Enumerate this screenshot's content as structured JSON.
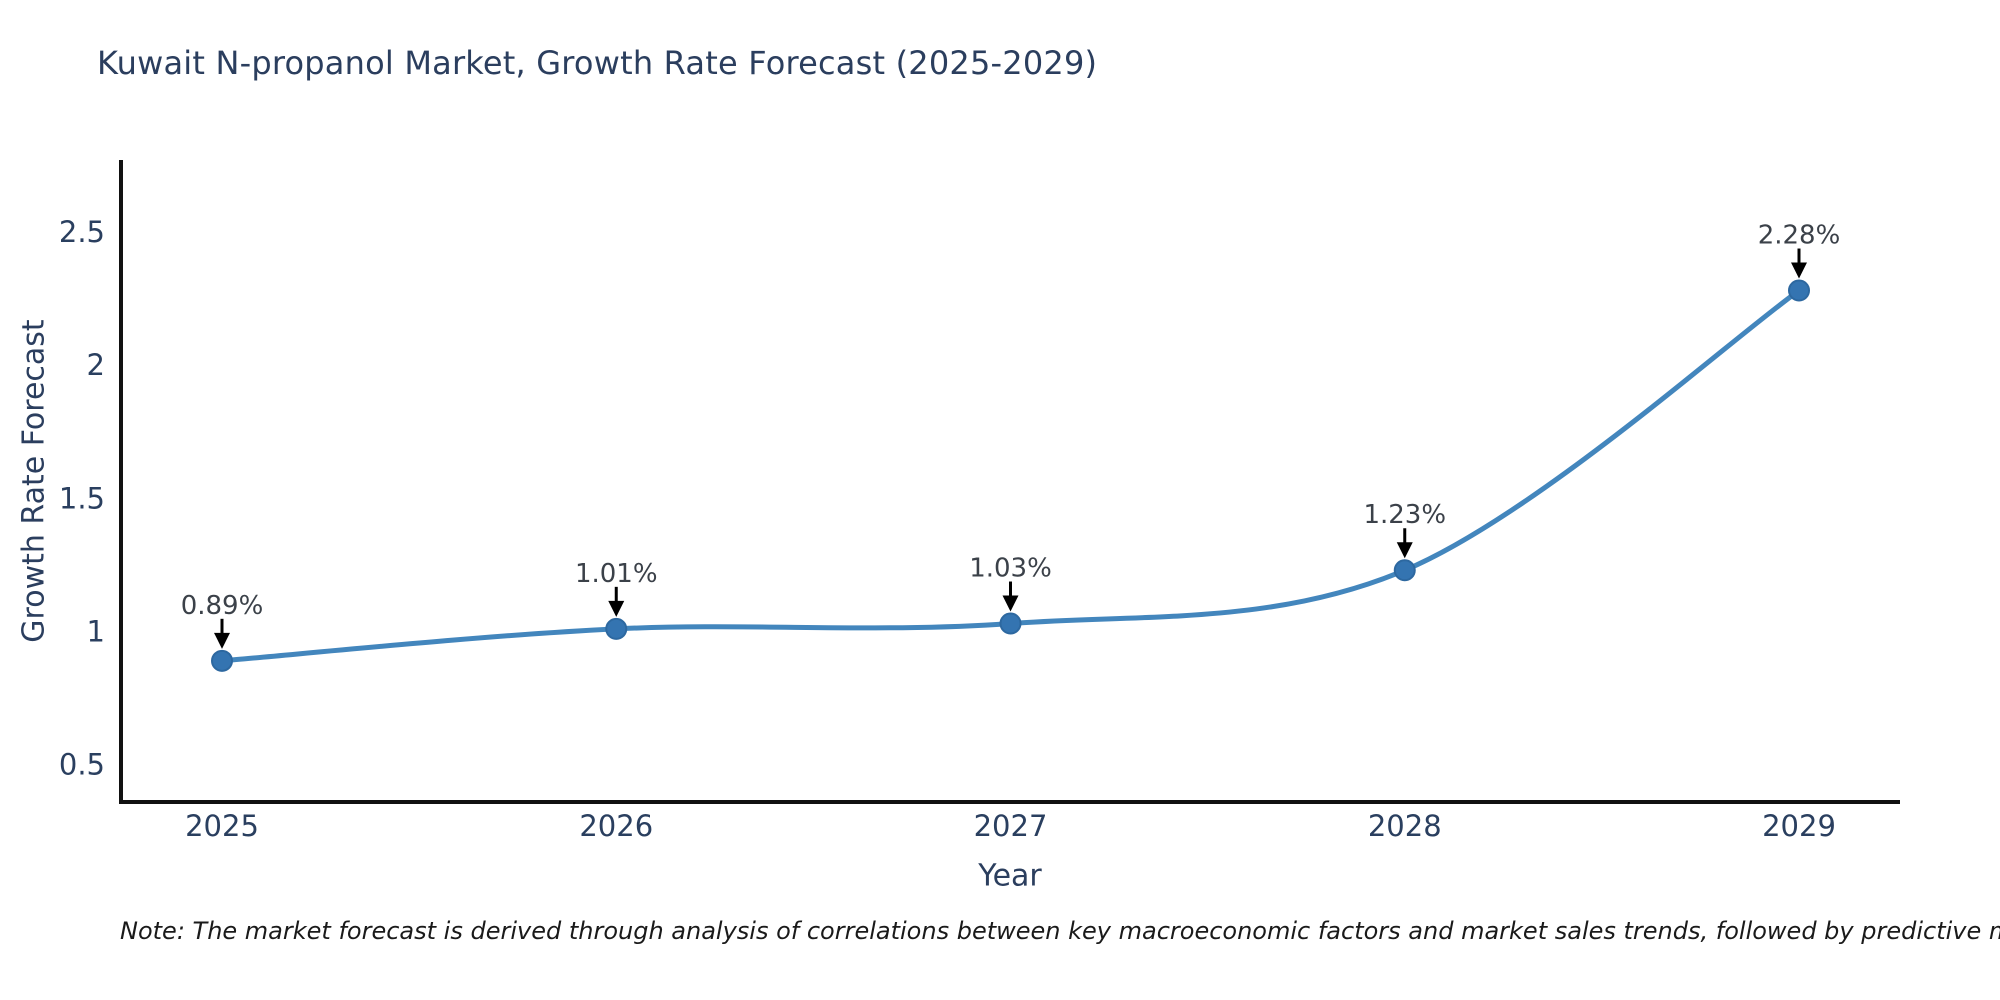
{
  "note": {
    "text": "Note: The market forecast is derived through analysis of correlations between key macroeconomic factors and market sales trends, followed by predictive modeling to project future sales"
  },
  "chart_data": {
    "type": "line",
    "title": "Kuwait N-propanol Market, Growth Rate Forecast (2025-2029)",
    "x": [
      "2025",
      "2026",
      "2027",
      "2028",
      "2029"
    ],
    "values": [
      0.89,
      1.01,
      1.03,
      1.23,
      2.28
    ],
    "point_labels": [
      "0.89%",
      "1.01%",
      "1.03%",
      "1.23%",
      "2.28%"
    ],
    "xlabel": "Year",
    "ylabel": "Growth Rate Forecast",
    "yticks": [
      0.5,
      1,
      1.5,
      2,
      2.5
    ],
    "ytick_labels": [
      "0.5",
      "1",
      "1.5",
      "2",
      "2.5"
    ],
    "ylim": [
      0.36,
      2.77
    ],
    "grid": false,
    "legend": false,
    "line_shape": "spline",
    "annotation_style": "value label above point with black down arrow",
    "colors": {
      "line": "#4386bd",
      "marker": "#3474b1",
      "marker_edge": "#2d68a0",
      "axis": "#111111",
      "arrow": "#000000",
      "title_text": "#2b3e5e",
      "tick_text": "#2a3f5f",
      "annotation_text": "#3b4149",
      "note_text": "#1a1a1a"
    }
  }
}
